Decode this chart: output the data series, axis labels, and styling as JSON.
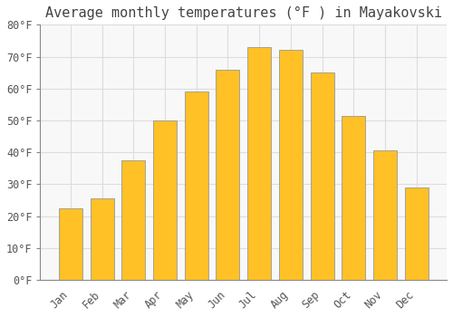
{
  "title": "Average monthly temperatures (°F ) in Mayakovski",
  "months": [
    "Jan",
    "Feb",
    "Mar",
    "Apr",
    "May",
    "Jun",
    "Jul",
    "Aug",
    "Sep",
    "Oct",
    "Nov",
    "Dec"
  ],
  "values": [
    22.5,
    25.5,
    37.5,
    50,
    59,
    66,
    73,
    72,
    65,
    51.5,
    40.5,
    29
  ],
  "bar_color": "#FFC125",
  "bar_edge_color": "#999999",
  "background_color": "#FFFFFF",
  "plot_bg_color": "#F8F8F8",
  "grid_color": "#DDDDDD",
  "ylim": [
    0,
    80
  ],
  "yticks": [
    0,
    10,
    20,
    30,
    40,
    50,
    60,
    70,
    80
  ],
  "ytick_labels": [
    "0°F",
    "10°F",
    "20°F",
    "30°F",
    "40°F",
    "50°F",
    "60°F",
    "70°F",
    "80°F"
  ],
  "title_fontsize": 11,
  "tick_fontsize": 8.5,
  "font_family": "monospace",
  "bar_width": 0.75
}
